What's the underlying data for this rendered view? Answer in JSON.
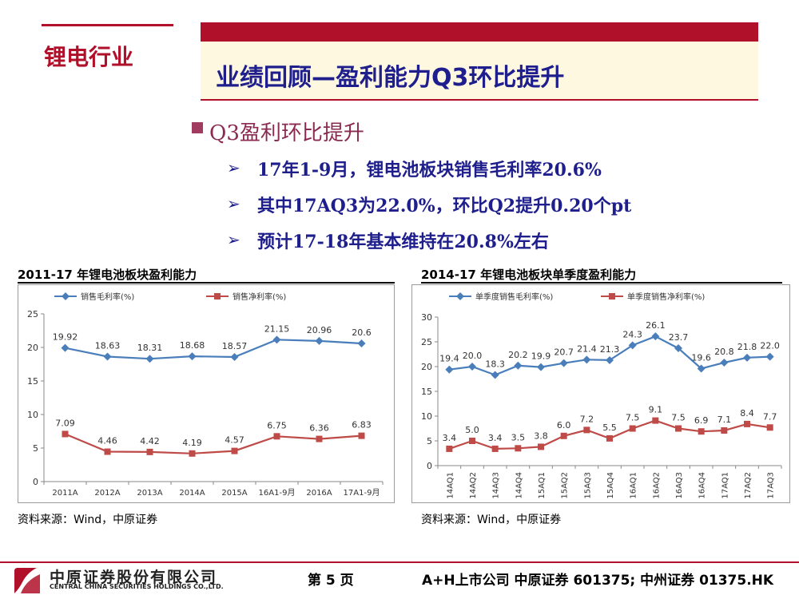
{
  "header": {
    "section": "锂电行业",
    "title": "业绩回顾—盈利能力Q3环比提升"
  },
  "bullets": {
    "main": "Q3盈利环比提升",
    "sub": [
      "17年1-9月，锂电池板块销售毛利率20.6%",
      "其中17AQ3为22.0%，环比Q2提升0.20个pt",
      "预计17-18年基本维持在20.8%左右"
    ]
  },
  "chart_data": [
    {
      "type": "line",
      "title": "2011-17 年锂电池板块盈利能力",
      "categories": [
        "2011A",
        "2012A",
        "2013A",
        "2014A",
        "2015A",
        "16A1-9月",
        "2016A",
        "17A1-9月"
      ],
      "series": [
        {
          "name": "销售毛利率(%)",
          "color": "#4a7ebb",
          "marker": "diamond",
          "values": [
            19.92,
            18.63,
            18.31,
            18.68,
            18.57,
            21.15,
            20.96,
            20.6
          ],
          "labels": [
            "19.92",
            "18.63",
            "18.31",
            "18.68",
            "18.57",
            "21.15",
            "20.96",
            "20.6"
          ]
        },
        {
          "name": "销售净利率(%)",
          "color": "#be4b48",
          "marker": "square",
          "values": [
            7.09,
            4.46,
            4.42,
            4.19,
            4.57,
            6.75,
            6.36,
            6.83
          ],
          "labels": [
            "7.09",
            "4.46",
            "4.42",
            "4.19",
            "4.57",
            "6.75",
            "6.36",
            "6.83"
          ]
        }
      ],
      "ylim": [
        0,
        25
      ],
      "yticks": [
        0,
        5,
        10,
        15,
        20,
        25
      ],
      "legend": "top",
      "grid": false,
      "source": "资料来源：Wind，中原证券"
    },
    {
      "type": "line",
      "title": "2014-17 年锂电池板块单季度盈利能力",
      "categories": [
        "14AQ1",
        "14AQ2",
        "14AQ3",
        "14AQ4",
        "15AQ1",
        "15AQ2",
        "15AQ3",
        "15AQ4",
        "16AQ1",
        "16AQ2",
        "16AQ3",
        "16AQ4",
        "17AQ1",
        "17AQ2",
        "17AQ3"
      ],
      "series": [
        {
          "name": "单季度销售毛利率(%)",
          "color": "#4a7ebb",
          "marker": "diamond",
          "values": [
            19.4,
            20.0,
            18.3,
            20.2,
            19.9,
            20.7,
            21.4,
            21.3,
            24.3,
            26.1,
            23.7,
            19.6,
            20.8,
            21.8,
            22.0
          ],
          "labels": [
            "19.4",
            "20.0",
            "18.3",
            "20.2",
            "19.9",
            "20.7",
            "21.4",
            "21.3",
            "24.3",
            "26.1",
            "23.7",
            "19.6",
            "20.8",
            "21.8",
            "22.0"
          ]
        },
        {
          "name": "单季度销售净利率(%)",
          "color": "#be4b48",
          "marker": "square",
          "values": [
            3.4,
            5.0,
            3.4,
            3.5,
            3.8,
            6.0,
            7.2,
            5.5,
            7.5,
            9.1,
            7.5,
            6.9,
            7.1,
            8.4,
            7.7
          ],
          "labels": [
            "3.4",
            "5.0",
            "3.4",
            "3.5",
            "3.8",
            "6.0",
            "7.2",
            "5.5",
            "7.5",
            "9.1",
            "7.5",
            "6.9",
            "7.1",
            "8.4",
            "7.7"
          ]
        }
      ],
      "ylim": [
        0,
        30
      ],
      "yticks": [
        0,
        5,
        10,
        15,
        20,
        25,
        30
      ],
      "legend": "top",
      "grid": false,
      "source": "资料来源：Wind，中原证券"
    }
  ],
  "footer": {
    "company_cn": "中原证券股份有限公司",
    "company_en": "CENTRAL CHINA SECURITIES HOLDINGS CO.,LTD.",
    "page": "第 5 页",
    "ticker": "A+H上市公司 中原证券 601375; 中州证券 01375.HK"
  }
}
